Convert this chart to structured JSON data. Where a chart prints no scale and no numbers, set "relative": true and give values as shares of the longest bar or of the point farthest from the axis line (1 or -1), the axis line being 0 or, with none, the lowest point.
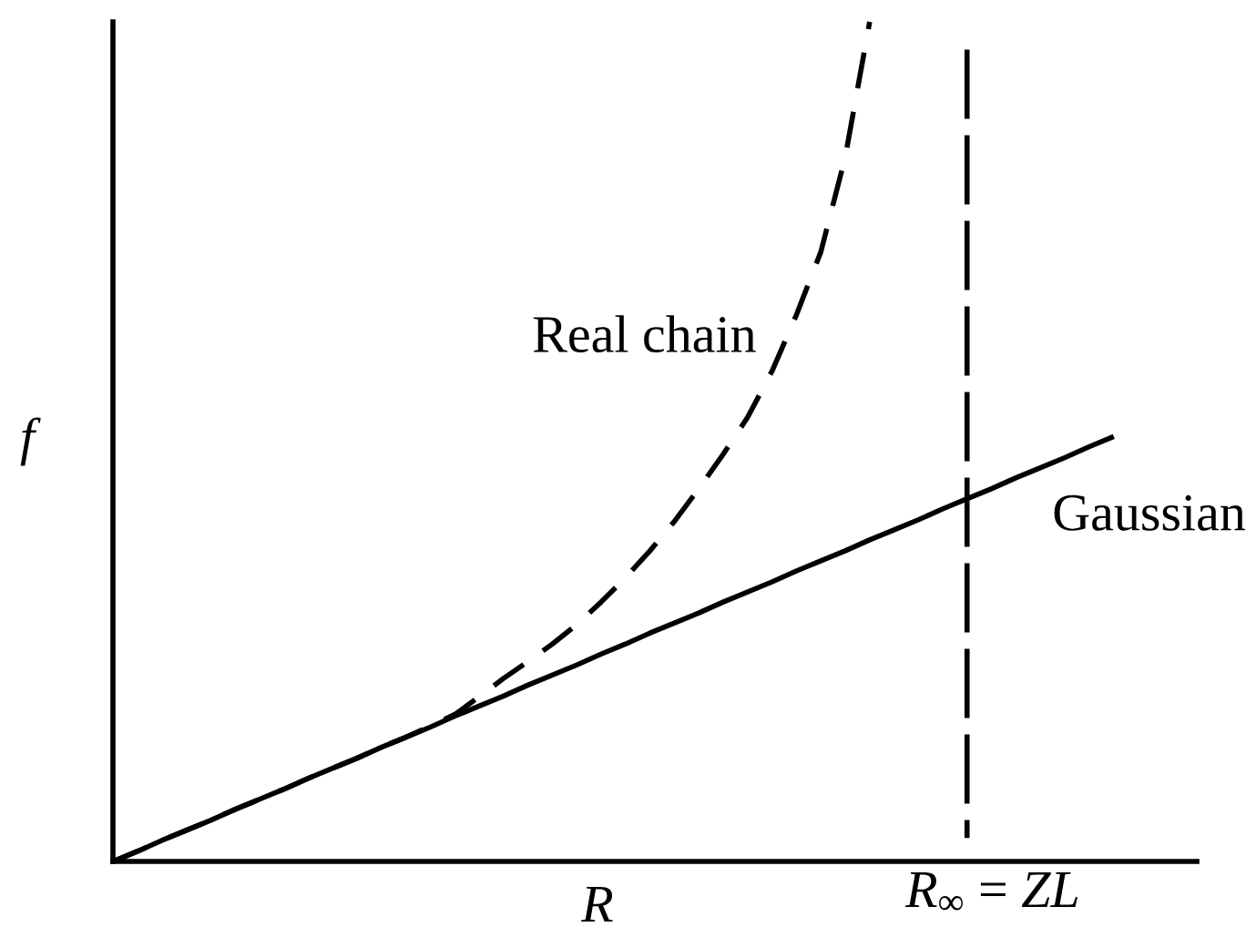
{
  "chart_data": {
    "type": "line",
    "relative": true,
    "xlabel": "R",
    "ylabel": "f",
    "categories": [
      null,
      null,
      null,
      null,
      null,
      null,
      null,
      null,
      null,
      null,
      null,
      null,
      null,
      null,
      null,
      null,
      null,
      null,
      null,
      null,
      null,
      null,
      null,
      null,
      null,
      null,
      null,
      null,
      null,
      null,
      null,
      null,
      null,
      null,
      null,
      null,
      null,
      null,
      null,
      null,
      null,
      null
    ],
    "series": [
      {
        "name": "Real chain",
        "color": "#000000",
        "line_style": "dashed",
        "values": [
          0,
          0.012,
          0.025,
          0.037,
          0.049,
          0.062,
          0.074,
          0.086,
          0.099,
          0.111,
          0.123,
          0.136,
          0.148,
          0.161,
          0.175,
          0.196,
          0.218,
          0.238,
          0.259,
          0.282,
          0.309,
          0.338,
          0.37,
          0.405,
          0.444,
          0.485,
          0.529,
          0.584,
          0.651,
          0.726,
          0.839,
          1.0,
          null,
          null,
          null,
          null,
          null,
          null,
          null,
          null,
          null,
          null
        ]
      },
      {
        "name": "Gaussian",
        "color": "#000000",
        "line_style": "solid",
        "values": [
          0,
          0.012,
          0.025,
          0.037,
          0.049,
          0.062,
          0.074,
          0.086,
          0.099,
          0.111,
          0.123,
          0.136,
          0.148,
          0.16,
          0.173,
          0.185,
          0.197,
          0.21,
          0.222,
          0.234,
          0.247,
          0.259,
          0.272,
          0.284,
          0.296,
          0.309,
          0.321,
          0.333,
          0.346,
          0.358,
          0.37,
          0.383,
          0.395,
          0.407,
          0.42,
          0.432,
          0.444,
          0.457,
          0.469,
          0.481,
          0.494,
          0.506
        ]
      }
    ],
    "annotations": [
      "*R*$_{∞}$ = *ZL*"
    ],
    "legend": false,
    "marker": "none"
  }
}
